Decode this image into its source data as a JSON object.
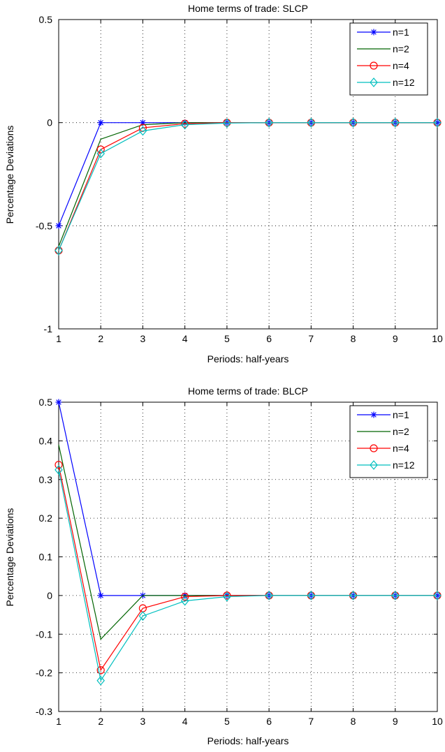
{
  "chart_data": [
    {
      "type": "line",
      "title": "Home terms of trade: SLCP",
      "xlabel": "Periods: half-years",
      "ylabel": "Percentage Deviations",
      "xlim": [
        1,
        10
      ],
      "ylim": [
        -1,
        0.5
      ],
      "x_ticks": [
        1,
        2,
        3,
        4,
        5,
        6,
        7,
        8,
        9,
        10
      ],
      "y_ticks": [
        -1,
        -0.5,
        0,
        0.5
      ],
      "y_tick_labels": [
        "-1",
        "-0.5",
        "0",
        "0.5"
      ],
      "grid": true,
      "legend_position": "top-right",
      "x": [
        1,
        2,
        3,
        4,
        5,
        6,
        7,
        8,
        9,
        10
      ],
      "series": [
        {
          "name": "n=1",
          "color": "#0000ff",
          "marker": "star",
          "values": [
            -0.5,
            0,
            0,
            0,
            0,
            0,
            0,
            0,
            0,
            0
          ]
        },
        {
          "name": "n=2",
          "color": "#006400",
          "marker": "none",
          "values": [
            -0.6,
            -0.08,
            -0.01,
            0,
            0,
            0,
            0,
            0,
            0,
            0
          ]
        },
        {
          "name": "n=4",
          "color": "#ff0000",
          "marker": "circle",
          "values": [
            -0.62,
            -0.13,
            -0.025,
            -0.005,
            0,
            0,
            0,
            0,
            0,
            0
          ]
        },
        {
          "name": "n=12",
          "color": "#00bfbf",
          "marker": "diamond",
          "values": [
            -0.62,
            -0.15,
            -0.04,
            -0.01,
            -0.002,
            0,
            0,
            0,
            0,
            0
          ]
        }
      ]
    },
    {
      "type": "line",
      "title": "Home terms of trade: BLCP",
      "xlabel": "Periods: half-years",
      "ylabel": "Percentage Deviations",
      "xlim": [
        1,
        10
      ],
      "ylim": [
        -0.3,
        0.5
      ],
      "x_ticks": [
        1,
        2,
        3,
        4,
        5,
        6,
        7,
        8,
        9,
        10
      ],
      "y_ticks": [
        -0.3,
        -0.2,
        -0.1,
        0,
        0.1,
        0.2,
        0.3,
        0.4,
        0.5
      ],
      "y_tick_labels": [
        "-0.3",
        "-0.2",
        "-0.1",
        "0",
        "0.1",
        "0.2",
        "0.3",
        "0.4",
        "0.5"
      ],
      "grid": true,
      "legend_position": "top-right",
      "x": [
        1,
        2,
        3,
        4,
        5,
        6,
        7,
        8,
        9,
        10
      ],
      "series": [
        {
          "name": "n=1",
          "color": "#0000ff",
          "marker": "star",
          "values": [
            0.5,
            0,
            0,
            0,
            0,
            0,
            0,
            0,
            0,
            0
          ]
        },
        {
          "name": "n=2",
          "color": "#006400",
          "marker": "none",
          "values": [
            0.39,
            -0.113,
            0,
            0,
            0,
            0,
            0,
            0,
            0,
            0
          ]
        },
        {
          "name": "n=4",
          "color": "#ff0000",
          "marker": "circle",
          "values": [
            0.338,
            -0.193,
            -0.033,
            -0.003,
            0,
            0,
            0,
            0,
            0,
            0
          ]
        },
        {
          "name": "n=12",
          "color": "#00bfbf",
          "marker": "diamond",
          "values": [
            0.325,
            -0.22,
            -0.053,
            -0.014,
            -0.003,
            0,
            0,
            0,
            0,
            0
          ]
        }
      ]
    }
  ]
}
